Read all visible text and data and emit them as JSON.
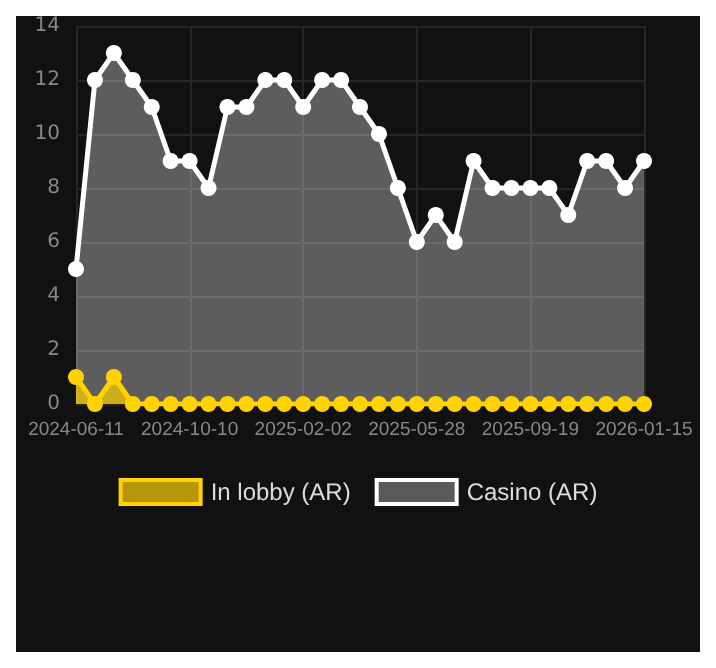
{
  "chart_data": {
    "type": "area",
    "categories": [
      "2024-06-11",
      null,
      null,
      null,
      null,
      null,
      "2024-10-10",
      null,
      null,
      null,
      null,
      null,
      "2025-02-02",
      null,
      null,
      null,
      null,
      null,
      "2025-05-28",
      null,
      null,
      null,
      null,
      null,
      "2025-09-19",
      null,
      null,
      null,
      null,
      null,
      "2026-01-15"
    ],
    "series": [
      {
        "name": "In lobby (AR)",
        "color": "#ffd200",
        "values": [
          1,
          0,
          1,
          0,
          0,
          0,
          0,
          0,
          0,
          0,
          0,
          0,
          0,
          0,
          0,
          0,
          0,
          0,
          0,
          0,
          0,
          0,
          0,
          0,
          0,
          0,
          0,
          0,
          0,
          0,
          0
        ]
      },
      {
        "name": "Casino (AR)",
        "color": "#ffffff",
        "values": [
          5,
          12,
          13,
          12,
          11,
          9,
          9,
          8,
          11,
          11,
          12,
          12,
          11,
          12,
          12,
          11,
          10,
          8,
          6,
          7,
          6,
          9,
          8,
          8,
          8,
          8,
          7,
          9,
          9,
          8,
          9
        ]
      }
    ],
    "ylim": [
      0,
      14
    ],
    "yticks": [
      0,
      2,
      4,
      6,
      8,
      10,
      12,
      14
    ],
    "grid": true,
    "legend": "bottom",
    "marker": "circle"
  }
}
